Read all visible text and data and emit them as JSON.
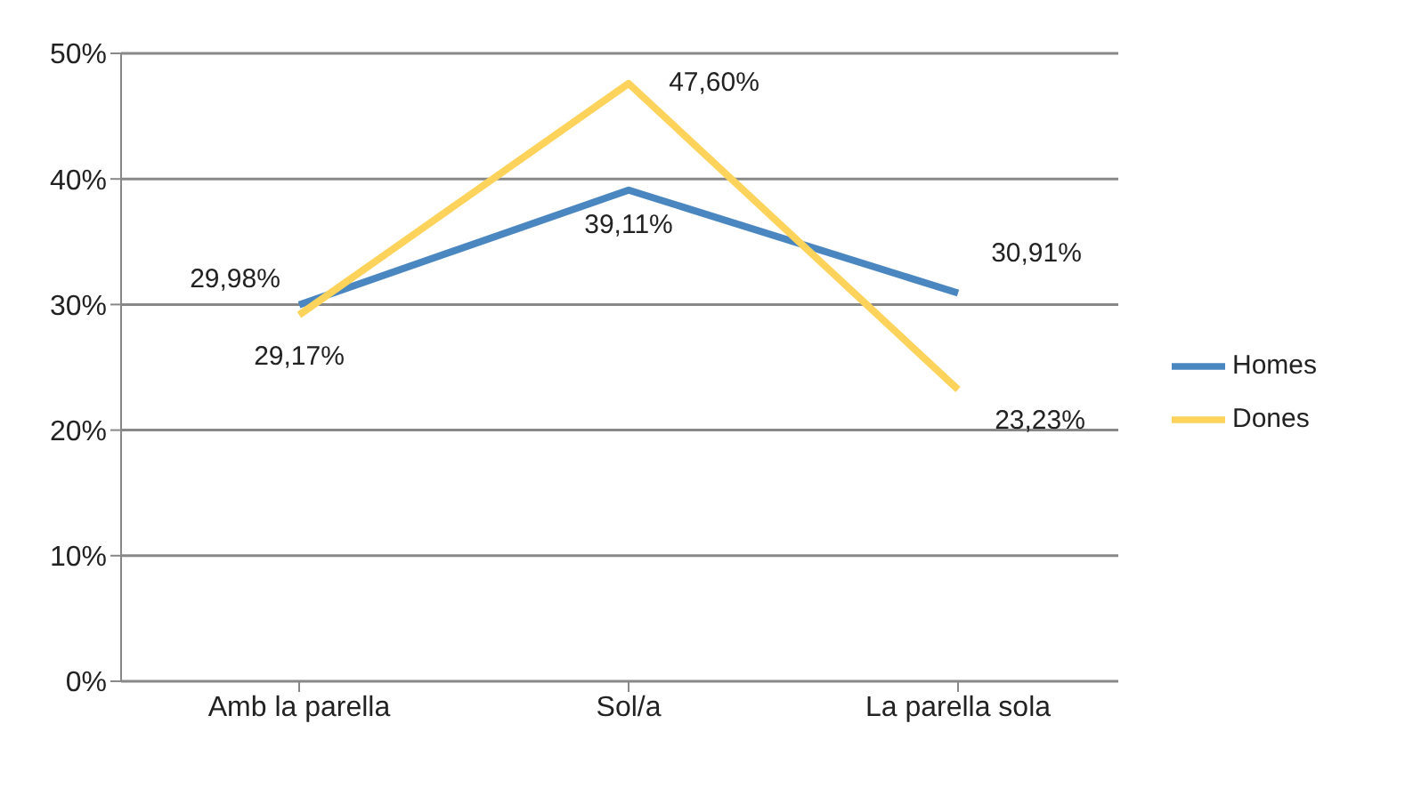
{
  "chart_data": {
    "type": "line",
    "categories": [
      "Amb la parella",
      "Sol/a",
      "La parella sola"
    ],
    "series": [
      {
        "name": "Homes",
        "color": "#4a86c0",
        "values": [
          29.98,
          39.11,
          30.91
        ],
        "value_labels": [
          "29,98%",
          "39,11%",
          "30,91%"
        ]
      },
      {
        "name": "Dones",
        "color": "#fdd35c",
        "values": [
          29.17,
          47.6,
          23.23
        ],
        "value_labels": [
          "29,17%",
          "47,60%",
          "23,23%"
        ]
      }
    ],
    "ylim": [
      0,
      50
    ],
    "yticks": [
      {
        "value": 0,
        "label": "0%"
      },
      {
        "value": 10,
        "label": "10%"
      },
      {
        "value": 20,
        "label": "20%"
      },
      {
        "value": 30,
        "label": "30%"
      },
      {
        "value": 40,
        "label": "40%"
      },
      {
        "value": 50,
        "label": "50%"
      }
    ],
    "grid": "y",
    "legend": "right",
    "marker": "none",
    "line_style": "solid"
  }
}
